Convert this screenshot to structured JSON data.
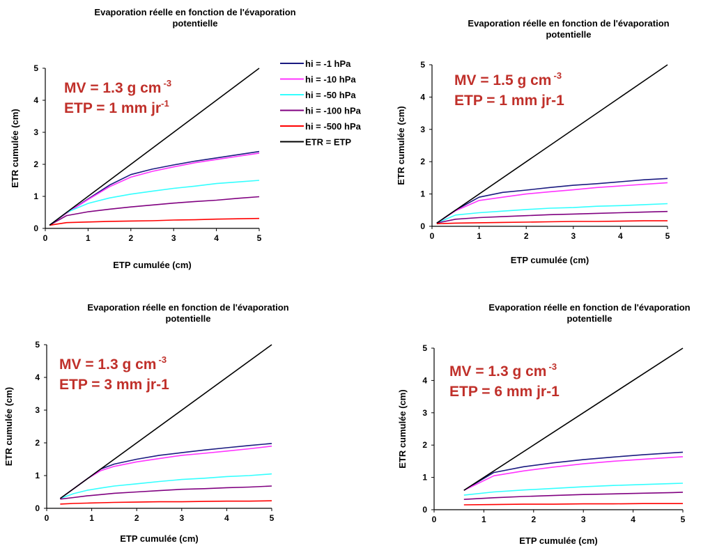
{
  "colors": {
    "annotation": "#c0302a",
    "axis": "#000000"
  },
  "legend": {
    "entries": [
      {
        "label": "hi = -1 hPa",
        "color": "#1a1a80"
      },
      {
        "label": "hi = -10 hPa",
        "color": "#ff33ff"
      },
      {
        "label": "hi = -50 hPa",
        "color": "#33ffff"
      },
      {
        "label": "hi = -100 hPa",
        "color": "#800080"
      },
      {
        "label": "hi = -500 hPa",
        "color": "#ff0000"
      },
      {
        "label": "ETR = ETP",
        "color": "#000000"
      }
    ]
  },
  "chart_data": [
    {
      "type": "line",
      "title": "Evaporation réelle en fonction de l'évaporation potentielle",
      "title_lines": [
        "Evaporation réelle en fonction de l'évaporation",
        "potentielle"
      ],
      "xlabel": "ETP cumulée (cm)",
      "ylabel": "ETR cumulée (cm)",
      "xlim": [
        0,
        5
      ],
      "ylim": [
        0,
        5
      ],
      "xticks": [
        0,
        1,
        2,
        3,
        4,
        5
      ],
      "yticks": [
        0,
        1,
        2,
        3,
        4,
        5
      ],
      "annotation": {
        "line1": "MV = 1.3 g cm",
        "line1_sup": "-3",
        "line2": "ETP = 1 mm jr",
        "line2_sup": "-1"
      },
      "series": [
        {
          "name": "hi = -1 hPa",
          "x": [
            0.1,
            0.5,
            1.0,
            1.5,
            2.0,
            2.5,
            3.0,
            3.5,
            4.0,
            4.5,
            5.0
          ],
          "y": [
            0.1,
            0.48,
            0.92,
            1.35,
            1.68,
            1.85,
            1.98,
            2.1,
            2.2,
            2.3,
            2.4
          ]
        },
        {
          "name": "hi = -10 hPa",
          "x": [
            0.1,
            0.5,
            1.0,
            1.5,
            2.0,
            2.5,
            3.0,
            3.5,
            4.0,
            4.5,
            5.0
          ],
          "y": [
            0.1,
            0.48,
            0.9,
            1.3,
            1.6,
            1.78,
            1.92,
            2.05,
            2.15,
            2.25,
            2.35
          ]
        },
        {
          "name": "hi = -50 hPa",
          "x": [
            0.1,
            0.5,
            1.0,
            1.5,
            2.0,
            2.5,
            3.0,
            3.5,
            4.0,
            4.5,
            5.0
          ],
          "y": [
            0.1,
            0.5,
            0.78,
            0.95,
            1.07,
            1.16,
            1.25,
            1.32,
            1.4,
            1.45,
            1.5
          ]
        },
        {
          "name": "hi = -100 hPa",
          "x": [
            0.1,
            0.5,
            1.0,
            1.5,
            2.0,
            2.5,
            3.0,
            3.5,
            4.0,
            4.5,
            5.0
          ],
          "y": [
            0.1,
            0.4,
            0.52,
            0.6,
            0.67,
            0.73,
            0.79,
            0.84,
            0.88,
            0.94,
            0.99
          ]
        },
        {
          "name": "hi = -500 hPa",
          "x": [
            0.1,
            0.5,
            1.0,
            1.5,
            2.0,
            2.5,
            3.0,
            3.5,
            4.0,
            4.5,
            5.0
          ],
          "y": [
            0.1,
            0.18,
            0.2,
            0.22,
            0.23,
            0.24,
            0.26,
            0.27,
            0.29,
            0.3,
            0.31
          ]
        },
        {
          "name": "ETR = ETP",
          "x": [
            0.1,
            5.0
          ],
          "y": [
            0.1,
            5.0
          ]
        }
      ]
    },
    {
      "type": "line",
      "title": "Evaporation réelle en fonction de l'évaporation potentielle",
      "title_lines": [
        "Evaporation réelle en fonction de l'évaporation",
        "potentielle"
      ],
      "xlabel": "ETP cumulée (cm)",
      "ylabel": "ETR cumulée (cm)",
      "xlim": [
        0,
        5
      ],
      "ylim": [
        0,
        5
      ],
      "xticks": [
        0,
        1,
        2,
        3,
        4,
        5
      ],
      "yticks": [
        0,
        1,
        2,
        3,
        4,
        5
      ],
      "annotation": {
        "line1": "MV = 1.5 g cm",
        "line1_sup": "-3",
        "line2": "ETP = 1 mm jr-1",
        "line2_sup": ""
      },
      "series": [
        {
          "name": "hi = -1 hPa",
          "x": [
            0.1,
            0.5,
            1.0,
            1.5,
            2.0,
            2.5,
            3.0,
            3.5,
            4.0,
            4.5,
            5.0
          ],
          "y": [
            0.1,
            0.5,
            0.9,
            1.05,
            1.12,
            1.2,
            1.27,
            1.32,
            1.38,
            1.44,
            1.48
          ]
        },
        {
          "name": "hi = -10 hPa",
          "x": [
            0.1,
            0.5,
            1.0,
            1.5,
            2.0,
            2.5,
            3.0,
            3.5,
            4.0,
            4.5,
            5.0
          ],
          "y": [
            0.1,
            0.48,
            0.8,
            0.9,
            1.0,
            1.07,
            1.13,
            1.2,
            1.25,
            1.3,
            1.35
          ]
        },
        {
          "name": "hi = -50 hPa",
          "x": [
            0.1,
            0.5,
            1.0,
            1.5,
            2.0,
            2.5,
            3.0,
            3.5,
            4.0,
            4.5,
            5.0
          ],
          "y": [
            0.1,
            0.35,
            0.42,
            0.47,
            0.52,
            0.56,
            0.58,
            0.62,
            0.64,
            0.67,
            0.7
          ]
        },
        {
          "name": "hi = -100 hPa",
          "x": [
            0.1,
            0.5,
            1.0,
            1.5,
            2.0,
            2.5,
            3.0,
            3.5,
            4.0,
            4.5,
            5.0
          ],
          "y": [
            0.1,
            0.22,
            0.27,
            0.3,
            0.33,
            0.36,
            0.38,
            0.4,
            0.42,
            0.44,
            0.46
          ]
        },
        {
          "name": "hi = -500 hPa",
          "x": [
            0.1,
            0.5,
            1.0,
            1.5,
            2.0,
            2.5,
            3.0,
            3.5,
            4.0,
            4.5,
            5.0
          ],
          "y": [
            0.08,
            0.1,
            0.11,
            0.12,
            0.13,
            0.14,
            0.15,
            0.15,
            0.16,
            0.17,
            0.17
          ]
        },
        {
          "name": "ETR = ETP",
          "x": [
            0.1,
            5.0
          ],
          "y": [
            0.1,
            5.0
          ]
        }
      ]
    },
    {
      "type": "line",
      "title": "Evaporation réelle en fonction de l'évaporation potentielle",
      "title_lines": [
        "Evaporation réelle en fonction de l'évaporation",
        "potentielle"
      ],
      "xlabel": "ETP cumulée (cm)",
      "ylabel": "ETR cumulée (cm)",
      "xlim": [
        0,
        5
      ],
      "ylim": [
        0,
        5
      ],
      "xticks": [
        0,
        1,
        2,
        3,
        4,
        5
      ],
      "yticks": [
        0,
        1,
        2,
        3,
        4,
        5
      ],
      "annotation": {
        "line1": "MV = 1.3 g cm",
        "line1_sup": "-3",
        "line2": "ETP = 3 mm jr-1",
        "line2_sup": ""
      },
      "series": [
        {
          "name": "hi = -1 hPa",
          "x": [
            0.3,
            0.6,
            0.9,
            1.2,
            1.5,
            2.0,
            2.5,
            3.0,
            3.5,
            4.0,
            4.5,
            5.0
          ],
          "y": [
            0.3,
            0.6,
            0.9,
            1.2,
            1.35,
            1.5,
            1.62,
            1.7,
            1.78,
            1.85,
            1.92,
            1.98
          ]
        },
        {
          "name": "hi = -10 hPa",
          "x": [
            0.3,
            0.6,
            0.9,
            1.2,
            1.5,
            2.0,
            2.5,
            3.0,
            3.5,
            4.0,
            4.5,
            5.0
          ],
          "y": [
            0.3,
            0.6,
            0.9,
            1.15,
            1.28,
            1.42,
            1.52,
            1.62,
            1.68,
            1.75,
            1.82,
            1.9
          ]
        },
        {
          "name": "hi = -50 hPa",
          "x": [
            0.3,
            0.6,
            0.9,
            1.2,
            1.5,
            2.0,
            2.5,
            3.0,
            3.5,
            4.0,
            4.5,
            5.0
          ],
          "y": [
            0.3,
            0.45,
            0.55,
            0.62,
            0.68,
            0.75,
            0.82,
            0.88,
            0.92,
            0.97,
            1.0,
            1.05
          ]
        },
        {
          "name": "hi = -100 hPa",
          "x": [
            0.3,
            0.6,
            0.9,
            1.2,
            1.5,
            2.0,
            2.5,
            3.0,
            3.5,
            4.0,
            4.5,
            5.0
          ],
          "y": [
            0.28,
            0.33,
            0.38,
            0.42,
            0.46,
            0.5,
            0.54,
            0.58,
            0.6,
            0.63,
            0.65,
            0.68
          ]
        },
        {
          "name": "hi = -500 hPa",
          "x": [
            0.3,
            0.6,
            0.9,
            1.2,
            1.5,
            2.0,
            2.5,
            3.0,
            3.5,
            4.0,
            4.5,
            5.0
          ],
          "y": [
            0.13,
            0.15,
            0.16,
            0.17,
            0.18,
            0.19,
            0.2,
            0.2,
            0.21,
            0.22,
            0.22,
            0.23
          ]
        },
        {
          "name": "ETR = ETP",
          "x": [
            0.3,
            5.0
          ],
          "y": [
            0.3,
            5.0
          ]
        }
      ]
    },
    {
      "type": "line",
      "title": "Evaporation réelle en fonction de l'évaporation potentielle",
      "title_lines": [
        "Evaporation réelle en fonction de l'évaporation",
        "potentielle"
      ],
      "xlabel": "ETP cumulée (cm)",
      "ylabel": "ETR cumulée (cm)",
      "xlim": [
        0,
        5
      ],
      "ylim": [
        0,
        5
      ],
      "xticks": [
        0,
        1,
        2,
        3,
        4,
        5
      ],
      "yticks": [
        0,
        1,
        2,
        3,
        4,
        5
      ],
      "annotation": {
        "line1": "MV = 1.3 g cm",
        "line1_sup": "-3",
        "line2": "ETP = 6 mm jr-1",
        "line2_sup": ""
      },
      "series": [
        {
          "name": "hi = -1 hPa",
          "x": [
            0.6,
            1.2,
            1.8,
            2.4,
            3.0,
            3.6,
            4.2,
            4.8,
            5.0
          ],
          "y": [
            0.6,
            1.15,
            1.33,
            1.45,
            1.55,
            1.63,
            1.7,
            1.76,
            1.78
          ]
        },
        {
          "name": "hi = -10 hPa",
          "x": [
            0.6,
            1.2,
            1.8,
            2.4,
            3.0,
            3.6,
            4.2,
            4.8,
            5.0
          ],
          "y": [
            0.6,
            1.05,
            1.2,
            1.32,
            1.42,
            1.5,
            1.56,
            1.62,
            1.64
          ]
        },
        {
          "name": "hi = -50 hPa",
          "x": [
            0.6,
            1.2,
            1.8,
            2.4,
            3.0,
            3.6,
            4.2,
            4.8,
            5.0
          ],
          "y": [
            0.45,
            0.55,
            0.61,
            0.66,
            0.71,
            0.75,
            0.78,
            0.81,
            0.82
          ]
        },
        {
          "name": "hi = -100 hPa",
          "x": [
            0.6,
            1.2,
            1.8,
            2.4,
            3.0,
            3.6,
            4.2,
            4.8,
            5.0
          ],
          "y": [
            0.32,
            0.37,
            0.41,
            0.44,
            0.47,
            0.49,
            0.51,
            0.53,
            0.54
          ]
        },
        {
          "name": "hi = -500 hPa",
          "x": [
            0.6,
            1.2,
            1.8,
            2.4,
            3.0,
            3.6,
            4.2,
            4.8,
            5.0
          ],
          "y": [
            0.15,
            0.16,
            0.17,
            0.17,
            0.18,
            0.18,
            0.19,
            0.19,
            0.19
          ]
        },
        {
          "name": "ETR = ETP",
          "x": [
            0.6,
            5.0
          ],
          "y": [
            0.6,
            5.0
          ]
        }
      ]
    }
  ]
}
